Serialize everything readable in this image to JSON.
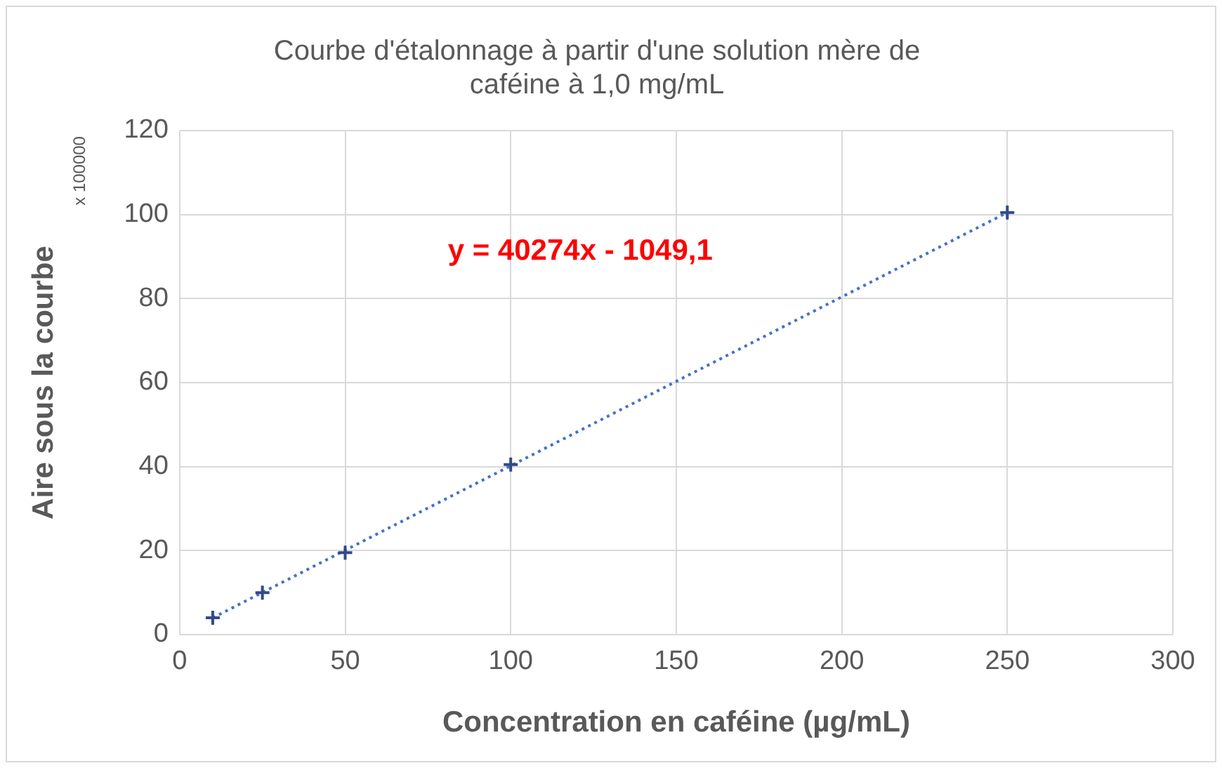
{
  "chart_data": {
    "type": "scatter",
    "title": "Courbe d'étalonnage à partir d'une solution mère de caféine à 1,0 mg/mL",
    "xlabel": "Concentration en caféine (µg/mL)",
    "ylabel": "Aire sous la courbe",
    "annotations": [
      "x 100000",
      "y = 40274x - 1049,1"
    ],
    "series": [
      {
        "color": "#2f4a8a",
        "x": [
          10,
          25,
          50,
          100,
          250
        ],
        "values": [
          4,
          10,
          19.5,
          40.5,
          100.5
        ],
        "marker": "cross"
      },
      {
        "type": "line",
        "color": "#4472c4",
        "x": [
          10,
          250
        ],
        "values": [
          4,
          100.5
        ],
        "line_style": "dotted",
        "marker": "none"
      }
    ],
    "xlim": [
      0,
      300
    ],
    "xticks": [
      0,
      50,
      100,
      150,
      200,
      250,
      300
    ],
    "ylim": [
      0,
      120
    ],
    "yticks": [
      0,
      20,
      40,
      60,
      80,
      100,
      120
    ],
    "grid": true,
    "legend": false
  }
}
